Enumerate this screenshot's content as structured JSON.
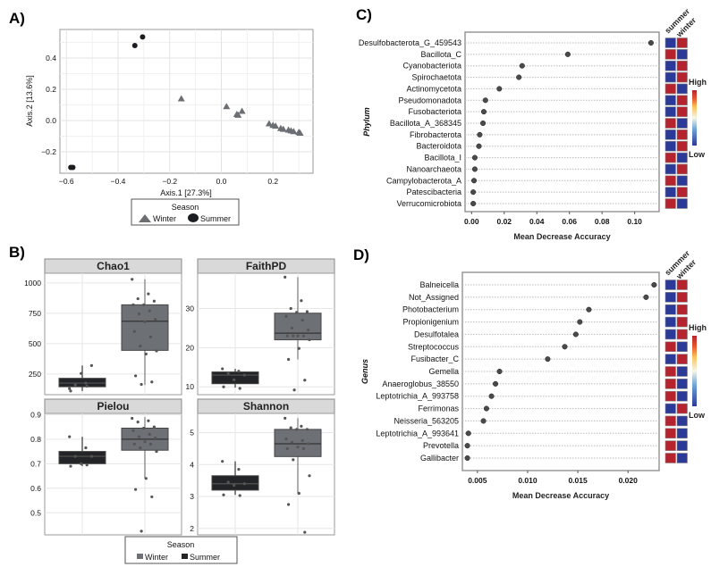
{
  "chart_data": [
    {
      "panel": "A)",
      "type": "scatter",
      "xlabel": "Axis.1   [27.3%]",
      "ylabel": "Axis.2   [13.6%]",
      "xlim": [
        -0.62,
        0.35
      ],
      "ylim": [
        -0.33,
        0.57
      ],
      "xticks": [
        "-0.6",
        "-0.4",
        "-0.2",
        "0.0",
        "0.2"
      ],
      "yticks": [
        "-0.2",
        "0.0",
        "0.2",
        "0.4"
      ],
      "grid": true,
      "legend": {
        "title": "Season",
        "position": "bottom",
        "entries": [
          "Winter",
          "Summer"
        ]
      },
      "series": [
        {
          "name": "Winter",
          "shape": "triangle",
          "color": "#6b6e73",
          "points": [
            [
              -0.155,
              0.14
            ],
            [
              0.02,
              0.09
            ],
            [
              0.06,
              0.04
            ],
            [
              0.065,
              0.035
            ],
            [
              0.08,
              0.06
            ],
            [
              0.185,
              -0.02
            ],
            [
              0.2,
              -0.03
            ],
            [
              0.21,
              -0.035
            ],
            [
              0.23,
              -0.05
            ],
            [
              0.24,
              -0.055
            ],
            [
              0.26,
              -0.06
            ],
            [
              0.27,
              -0.065
            ],
            [
              0.28,
              -0.07
            ],
            [
              0.3,
              -0.075
            ],
            [
              0.305,
              -0.08
            ]
          ]
        },
        {
          "name": "Summer",
          "shape": "circle",
          "color": "#1c1d21",
          "points": [
            [
              -0.335,
              0.48
            ],
            [
              -0.305,
              0.535
            ],
            [
              -0.583,
              -0.3
            ],
            [
              -0.575,
              -0.3
            ]
          ]
        }
      ]
    },
    {
      "panel": "B)",
      "type": "box",
      "legend": {
        "title": "Season",
        "position": "bottom",
        "entries": [
          "Winter",
          "Summer"
        ],
        "colors": [
          "#6d7176",
          "#232427"
        ]
      },
      "facets": [
        {
          "title": "Chao1",
          "ylim": [
            80,
            1080
          ],
          "yticks": [
            250,
            500,
            750,
            1000
          ],
          "boxes": [
            {
              "color": "#232427",
              "q1": 145,
              "median": 175,
              "q3": 215,
              "low": 110,
              "high": 320,
              "points": [
                130,
                175,
                160,
                320,
                255,
                110,
                150
              ]
            },
            {
              "color": "#6d7176",
              "q1": 445,
              "median": 685,
              "q3": 820,
              "low": 160,
              "high": 1030,
              "points": [
                1030,
                910,
                870,
                850,
                820,
                820,
                770,
                745,
                700,
                680,
                600,
                555,
                480,
                440,
                415,
                235,
                185,
                165
              ]
            }
          ]
        },
        {
          "title": "FaithPD",
          "ylim": [
            8,
            39
          ],
          "yticks": [
            10,
            20,
            30
          ],
          "boxes": [
            {
              "color": "#232427",
              "q1": 10.8,
              "median": 13,
              "q3": 13.8,
              "low": 9.8,
              "high": 14.6,
              "points": [
                14.6,
                14,
                13.5,
                13,
                11.8,
                10,
                9.6
              ]
            },
            {
              "color": "#6d7176",
              "q1": 22,
              "median": 23.7,
              "q3": 28.8,
              "low": 17,
              "high": 38,
              "points": [
                38,
                32,
                30,
                29.2,
                29,
                28,
                27,
                25,
                24.5,
                23,
                23,
                23,
                23,
                22,
                19.8,
                17,
                11.7,
                9.2
              ]
            }
          ]
        },
        {
          "title": "Pielou",
          "ylim": [
            0.41,
            0.905
          ],
          "yticks": [
            0.5,
            0.6,
            0.7,
            0.8,
            0.9
          ],
          "boxes": [
            {
              "color": "#232427",
              "q1": 0.7,
              "median": 0.73,
              "q3": 0.75,
              "low": 0.69,
              "high": 0.81,
              "points": [
                0.81,
                0.765,
                0.73,
                0.73,
                0.7,
                0.69,
                0.695
              ]
            },
            {
              "color": "#6d7176",
              "q1": 0.755,
              "median": 0.8,
              "q3": 0.845,
              "low": 0.64,
              "high": 0.89,
              "points": [
                0.885,
                0.875,
                0.87,
                0.85,
                0.845,
                0.835,
                0.82,
                0.81,
                0.805,
                0.79,
                0.78,
                0.78,
                0.765,
                0.75,
                0.64,
                0.595,
                0.565,
                0.425
              ]
            }
          ]
        },
        {
          "title": "Shannon",
          "ylim": [
            1.8,
            5.6
          ],
          "yticks": [
            2,
            3,
            4,
            5
          ],
          "boxes": [
            {
              "color": "#232427",
              "q1": 3.2,
              "median": 3.4,
              "q3": 3.65,
              "low": 3.05,
              "high": 4.1,
              "points": [
                4.1,
                3.85,
                3.45,
                3.4,
                3.35,
                3.05,
                3.03
              ]
            },
            {
              "color": "#6d7176",
              "q1": 4.25,
              "median": 4.65,
              "q3": 5.1,
              "low": 3.1,
              "high": 5.45,
              "points": [
                5.45,
                5.2,
                5.15,
                5.1,
                5.1,
                4.8,
                4.75,
                4.7,
                4.65,
                4.55,
                4.5,
                4.5,
                4.15,
                3.65,
                3.1,
                2.75,
                1.88
              ]
            }
          ]
        }
      ]
    },
    {
      "panel": "C)",
      "type": "dot",
      "xlabel": "Mean Decrease Accuracy",
      "ylabel": "Phylum",
      "xlim": [
        -0.004,
        0.115
      ],
      "xticks": [
        "0.00",
        "0.02",
        "0.04",
        "0.06",
        "0.08",
        "0.10"
      ],
      "categories": [
        "Desulfobacterota_G_459543",
        "Bacillota_C",
        "Cyanobacteriota",
        "Spirochaetota",
        "Actinomycetota",
        "Pseudomonadota",
        "Fusobacteriota",
        "Bacillota_A_368345",
        "Fibrobacterota",
        "Bacteroidota",
        "Bacillota_I",
        "Nanoarchaeota",
        "Campylobacterota_A",
        "Patescibacteria",
        "Verrucomicrobiota"
      ],
      "values": [
        0.11,
        0.059,
        0.031,
        0.029,
        0.017,
        0.0085,
        0.0075,
        0.007,
        0.005,
        0.0045,
        0.002,
        0.002,
        0.0015,
        0.001,
        0.001
      ],
      "heatmap": {
        "columns": [
          "summer",
          "winter"
        ],
        "legend": {
          "high": "High",
          "low": "Low"
        },
        "levels": [
          [
            "low",
            "high"
          ],
          [
            "high",
            "low"
          ],
          [
            "low",
            "high"
          ],
          [
            "low",
            "high"
          ],
          [
            "high",
            "low"
          ],
          [
            "low",
            "high"
          ],
          [
            "low",
            "high"
          ],
          [
            "high",
            "low"
          ],
          [
            "low",
            "high"
          ],
          [
            "low",
            "high"
          ],
          [
            "high",
            "low"
          ],
          [
            "low",
            "high"
          ],
          [
            "high",
            "low"
          ],
          [
            "low",
            "high"
          ],
          [
            "high",
            "low"
          ]
        ]
      }
    },
    {
      "panel": "D)",
      "type": "dot",
      "xlabel": "Mean Decrease Accuracy",
      "ylabel": "Genus",
      "xlim": [
        0.0035,
        0.0231
      ],
      "xticks": [
        "0.005",
        "0.010",
        "0.015",
        "0.020"
      ],
      "categories": [
        "Balneicella",
        "Not_Assigned",
        "Photobacterium",
        "Propionigenium",
        "Desulfotalea",
        "Streptococcus",
        "Fusibacter_C",
        "Gemella",
        "Anaeroglobus_38550",
        "Leptotrichia_A_993758",
        "Ferrimonas",
        "Neisseria_563205",
        "Leptotrichia_A_993641",
        "Prevotella",
        "Gallibacter"
      ],
      "values": [
        0.0226,
        0.0218,
        0.0161,
        0.0152,
        0.0148,
        0.0137,
        0.012,
        0.0072,
        0.0068,
        0.0064,
        0.0059,
        0.0056,
        0.0041,
        0.004,
        0.004
      ],
      "heatmap": {
        "columns": [
          "summer",
          "winter"
        ],
        "legend": {
          "high": "High",
          "low": "Low"
        },
        "levels": [
          [
            "low",
            "high"
          ],
          [
            "low",
            "high"
          ],
          [
            "low",
            "high"
          ],
          [
            "low",
            "high"
          ],
          [
            "low",
            "high"
          ],
          [
            "high",
            "low"
          ],
          [
            "low",
            "high"
          ],
          [
            "high",
            "low"
          ],
          [
            "high",
            "low"
          ],
          [
            "high",
            "low"
          ],
          [
            "low",
            "high"
          ],
          [
            "high",
            "low"
          ],
          [
            "high",
            "low"
          ],
          [
            "high",
            "low"
          ],
          [
            "high",
            "low"
          ]
        ]
      }
    }
  ],
  "colors": {
    "high": "#b5232f",
    "low": "#2b3a99",
    "winter": "#6d7176",
    "summer": "#232427"
  }
}
